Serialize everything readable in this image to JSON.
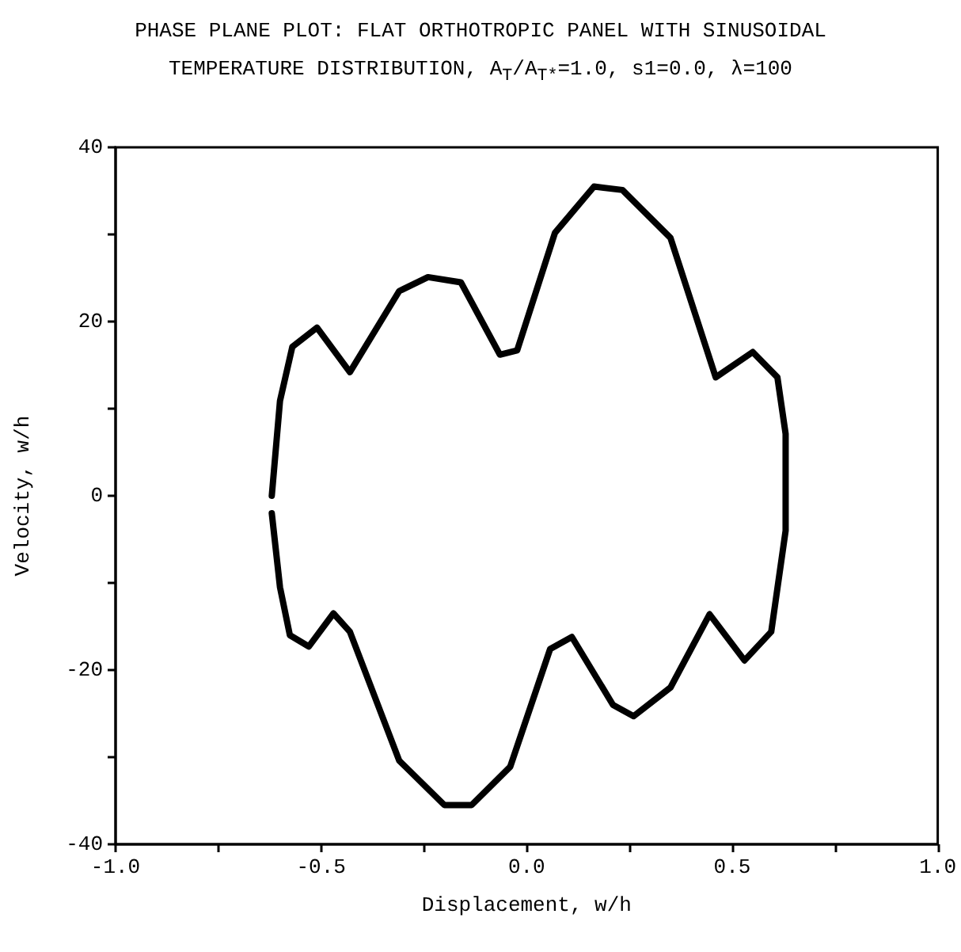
{
  "chart_data": {
    "type": "line",
    "title": "PHASE PLANE PLOT: FLAT ORTHOTROPIC PANEL WITH SINUSOIDAL",
    "subtitle": "TEMPERATURE DISTRIBUTION,  A$_{T}$/A$_{T*}$=1.0, s1=0.0,  λ=100",
    "xlabel": "Displacement, w/h",
    "ylabel": "Velocity, w/h",
    "xlim": [
      -1,
      1
    ],
    "xticks": [
      {
        "value": -1,
        "label": "-1.0"
      },
      {
        "value": -0.75,
        "label": null
      },
      {
        "value": -0.5,
        "label": "-0.5"
      },
      {
        "value": -0.25,
        "label": null
      },
      {
        "value": 0,
        "label": "0.0"
      },
      {
        "value": 0.25,
        "label": null
      },
      {
        "value": 0.5,
        "label": "0.5"
      },
      {
        "value": 0.75,
        "label": null
      },
      {
        "value": 1,
        "label": "1.0"
      }
    ],
    "ylim": [
      -40,
      40
    ],
    "yticks": [
      -40,
      {
        "value": -30,
        "label": null
      },
      -20,
      {
        "value": -10,
        "label": null
      },
      0,
      {
        "value": 10,
        "label": null
      },
      20,
      {
        "value": 30,
        "label": null
      },
      40
    ],
    "grid": false,
    "marker": "none",
    "line_style": "solid",
    "series": [
      {
        "color": "#000000",
        "x": [
          -0.62,
          -0.6,
          -0.57,
          -0.51,
          -0.43,
          -0.31,
          -0.24,
          -0.16,
          -0.065,
          -0.023,
          0.069,
          0.164,
          0.233,
          0.35,
          0.46,
          0.55,
          0.61,
          0.63,
          0.63,
          0.595,
          0.53,
          0.445,
          0.35,
          0.26,
          0.21,
          0.11,
          0.057,
          -0.04,
          -0.134,
          -0.2,
          -0.31,
          -0.43,
          -0.47,
          -0.53,
          -0.576,
          -0.6,
          -0.62
        ],
        "values": [
          0,
          10.9,
          17.1,
          19.3,
          14.2,
          23.5,
          25.1,
          24.5,
          16.2,
          16.7,
          30.2,
          35.5,
          35.1,
          29.6,
          13.6,
          16.5,
          13.6,
          7.1,
          -4,
          -15.6,
          -18.9,
          -13.6,
          -22,
          -25.3,
          -24,
          -16.2,
          -17.6,
          -31.1,
          -35.5,
          -35.5,
          -30.4,
          -15.6,
          -13.5,
          -17.3,
          -16,
          -10.5,
          -2
        ]
      }
    ]
  }
}
